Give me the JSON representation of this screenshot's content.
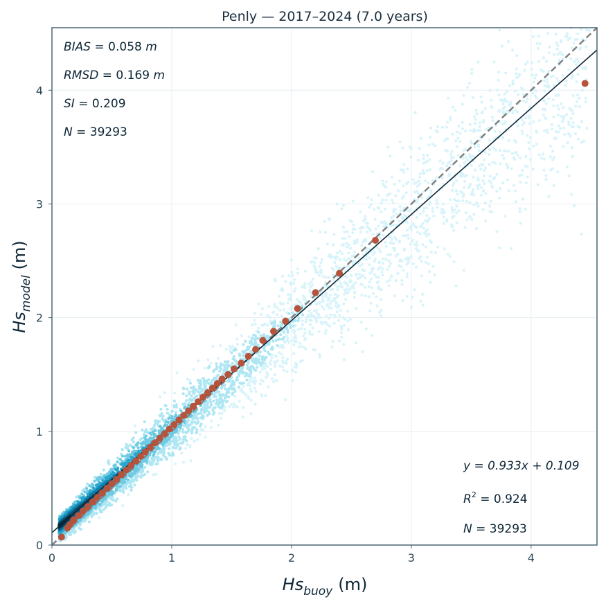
{
  "chart_data": {
    "type": "scatter",
    "title": "Penly — 2017–2024 (7.0 years)",
    "xlabel": {
      "main": "Hs",
      "sub": "buoy",
      "unit": "(m)"
    },
    "ylabel": {
      "main": "Hs",
      "sub": "model",
      "unit": "(m)"
    },
    "xlim": [
      0,
      4.55
    ],
    "ylim": [
      0,
      4.55
    ],
    "xticks": [
      0,
      1,
      2,
      3,
      4
    ],
    "yticks": [
      0,
      1,
      2,
      3,
      4
    ],
    "grid": true,
    "stats_top_left": [
      {
        "name": "BIAS",
        "value": "0.058",
        "unit": "m"
      },
      {
        "name": "RMSD",
        "value": "0.169",
        "unit": "m"
      },
      {
        "name": "SI",
        "value": "0.209",
        "unit": ""
      },
      {
        "name": "N",
        "value": "39293",
        "unit": ""
      }
    ],
    "stats_bottom_right": {
      "fit": "y = 0.933x + 0.109",
      "r2": "0.924",
      "n": "39293"
    },
    "regression": {
      "slope": 0.933,
      "intercept": 0.109
    },
    "identity_line": true,
    "density_points": {
      "count_hint": 39293,
      "palette": [
        "#d8f4fa",
        "#aee6f3",
        "#6fcbe3",
        "#2aa6cf",
        "#117ea8",
        "#0b4f6e",
        "#06283b"
      ]
    },
    "quantile_points": {
      "x": [
        0.08,
        0.13,
        0.15,
        0.18,
        0.22,
        0.26,
        0.3,
        0.34,
        0.38,
        0.42,
        0.46,
        0.5,
        0.54,
        0.58,
        0.62,
        0.66,
        0.7,
        0.74,
        0.78,
        0.82,
        0.86,
        0.9,
        0.94,
        0.98,
        1.02,
        1.06,
        1.1,
        1.14,
        1.18,
        1.22,
        1.26,
        1.3,
        1.34,
        1.38,
        1.42,
        1.47,
        1.52,
        1.58,
        1.64,
        1.7,
        1.76,
        1.85,
        1.95,
        2.05,
        2.2,
        2.4,
        2.7,
        4.45
      ],
      "y": [
        0.07,
        0.15,
        0.18,
        0.22,
        0.26,
        0.3,
        0.34,
        0.38,
        0.42,
        0.46,
        0.5,
        0.54,
        0.58,
        0.62,
        0.66,
        0.7,
        0.74,
        0.78,
        0.82,
        0.86,
        0.9,
        0.94,
        0.98,
        1.02,
        1.06,
        1.1,
        1.14,
        1.18,
        1.22,
        1.26,
        1.3,
        1.34,
        1.38,
        1.42,
        1.46,
        1.5,
        1.55,
        1.6,
        1.66,
        1.72,
        1.8,
        1.88,
        1.97,
        2.08,
        2.22,
        2.39,
        2.68,
        4.06
      ],
      "color": "#b5533c"
    },
    "colors": {
      "frame": "#4b6373",
      "identity": "#808080",
      "regression": "#0d2536",
      "grid": "#e6edf0"
    }
  }
}
